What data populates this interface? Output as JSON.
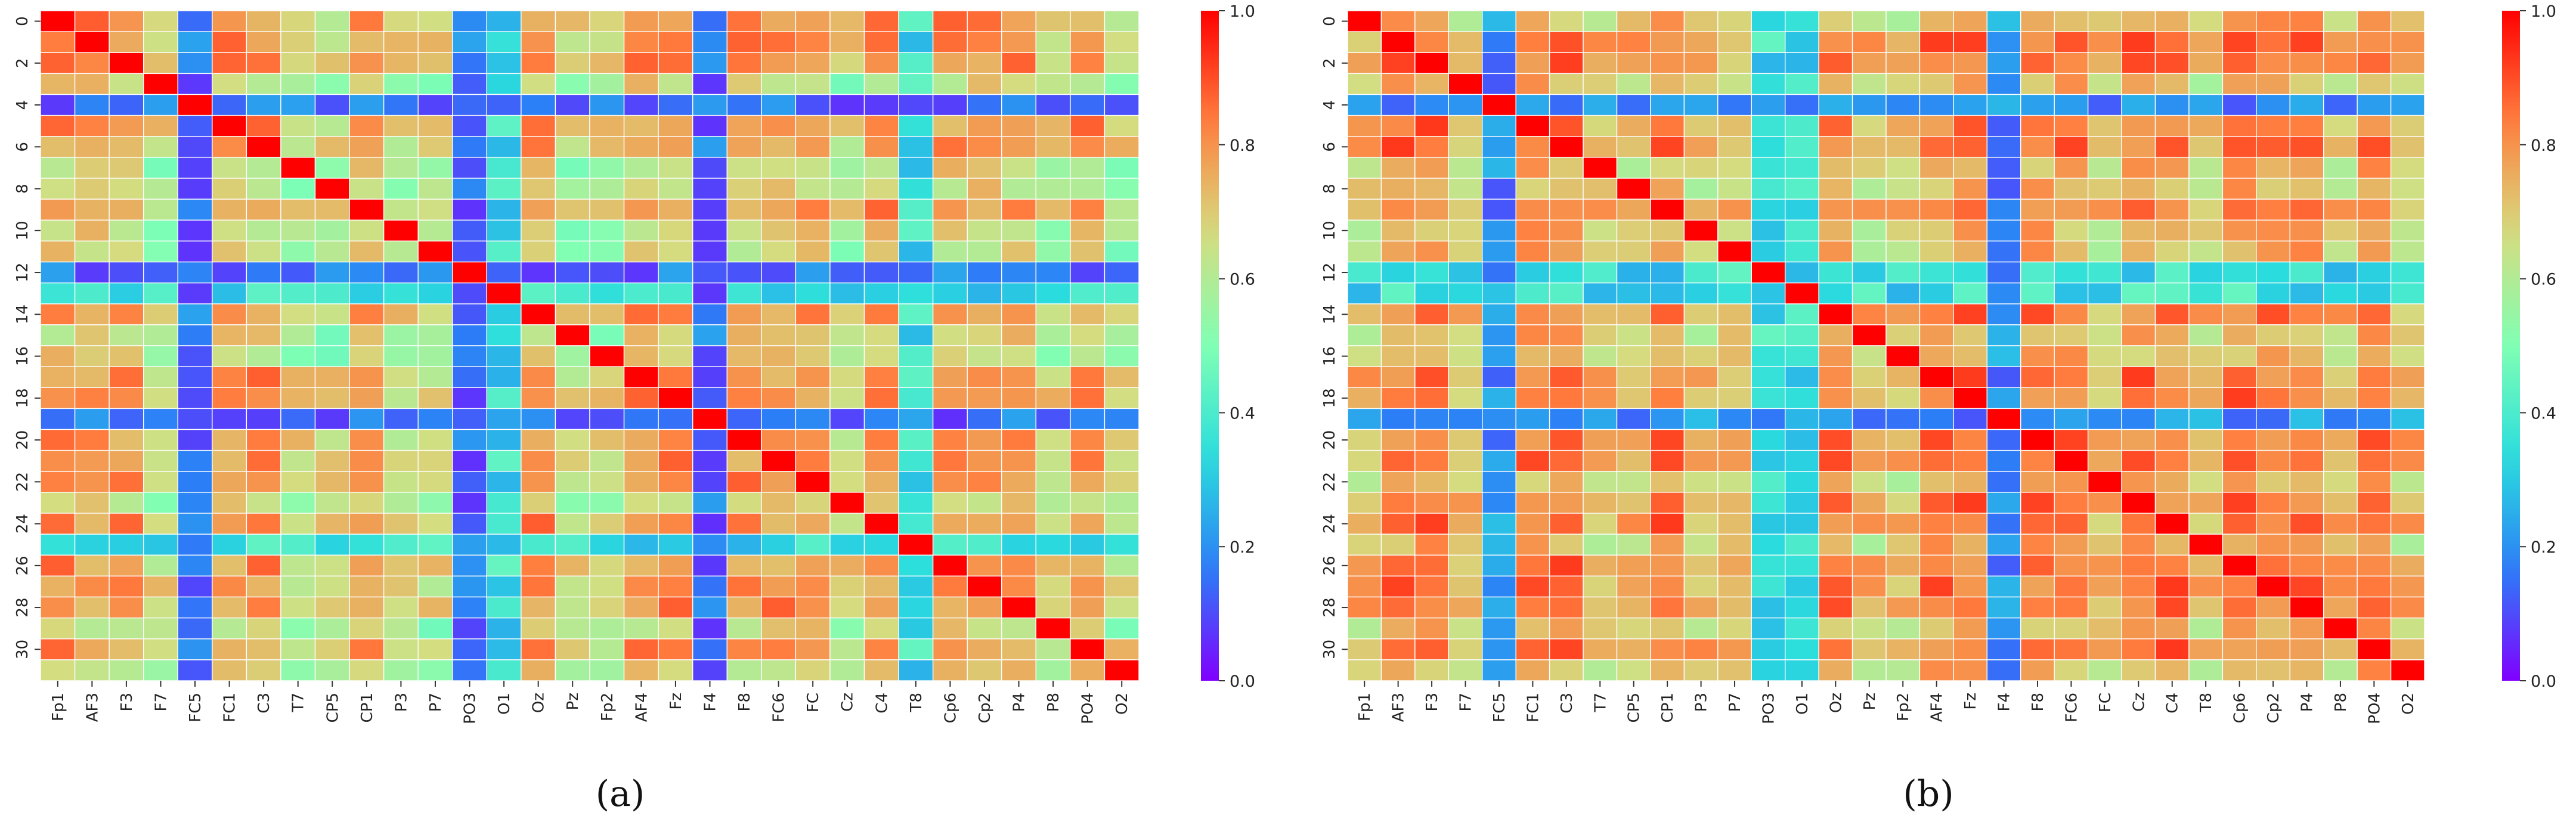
{
  "figure": {
    "description_labels": [
      "(a)",
      "(b)"
    ]
  },
  "colormap": {
    "name": "rainbow",
    "stops": [
      "#8000ff",
      "#2c7ef7",
      "#2adddd",
      "#80ffb4",
      "#d4dd80",
      "#ff8040",
      "#ff0000"
    ]
  },
  "chart_data": [
    {
      "type": "heatmap",
      "panel_label": "(a)",
      "title": "",
      "xlabel": "",
      "ylabel": "",
      "x_tick_labels": [
        "Fp1",
        "AF3",
        "F3",
        "F7",
        "FC5",
        "FC1",
        "C3",
        "T7",
        "CP5",
        "CP1",
        "P3",
        "P7",
        "PO3",
        "O1",
        "Oz",
        "Pz",
        "Fp2",
        "AF4",
        "Fz",
        "F4",
        "F8",
        "FC6",
        "FC",
        "Cz",
        "C4",
        "T8",
        "Cp6",
        "Cp2",
        "P4",
        "P8",
        "PO4",
        "O2"
      ],
      "y_tick_labels": [
        "0",
        "2",
        "4",
        "6",
        "8",
        "10",
        "12",
        "14",
        "16",
        "18",
        "20",
        "22",
        "24",
        "26",
        "28",
        "30"
      ],
      "n_rows": 32,
      "n_cols": 32,
      "value_range": [
        0.0,
        1.0
      ],
      "colorbar_ticks": [
        "0.0",
        "0.2",
        "0.4",
        "0.6",
        "0.8",
        "1.0"
      ],
      "grid": true,
      "diagonal_value": 1.0,
      "low_correlation_channels": {
        "indices": [
          4,
          12,
          19
        ],
        "labels": [
          "FC5",
          "PO3",
          "F4"
        ],
        "approx_value": 0.15
      },
      "medium_low_channels": {
        "indices": [
          13,
          25
        ],
        "labels": [
          "O1",
          "T8"
        ],
        "approx_value": 0.35
      },
      "high_correlation_channels": {
        "indices": [
          0,
          1,
          2,
          5,
          6,
          9,
          14,
          17,
          18,
          20,
          21,
          22,
          24,
          26,
          27,
          28,
          30
        ],
        "approx_value": 0.8
      },
      "background_value": 0.55
    },
    {
      "type": "heatmap",
      "panel_label": "(b)",
      "title": "",
      "xlabel": "",
      "ylabel": "",
      "x_tick_labels": [
        "Fp1",
        "AF3",
        "F3",
        "F7",
        "FC5",
        "FC1",
        "C3",
        "T7",
        "CP5",
        "CP1",
        "P3",
        "P7",
        "PO3",
        "O1",
        "Oz",
        "Pz",
        "Fp2",
        "AF4",
        "Fz",
        "F4",
        "F8",
        "FC6",
        "FC",
        "Cz",
        "C4",
        "T8",
        "Cp6",
        "Cp2",
        "P4",
        "P8",
        "PO4",
        "O2"
      ],
      "y_tick_labels": [
        "0",
        "2",
        "4",
        "6",
        "8",
        "10",
        "12",
        "14",
        "16",
        "18",
        "20",
        "22",
        "24",
        "26",
        "28",
        "30"
      ],
      "n_rows": 32,
      "n_cols": 32,
      "value_range": [
        0.0,
        1.0
      ],
      "colorbar_ticks": [
        "0.0",
        "0.2",
        "0.4",
        "0.6",
        "0.8",
        "1.0"
      ],
      "grid": true,
      "diagonal_value": 1.0,
      "low_correlation_channels": {
        "indices": [
          4,
          19
        ],
        "labels": [
          "FC5",
          "F4"
        ],
        "approx_value": 0.2
      },
      "medium_low_channels": {
        "indices": [
          12,
          13
        ],
        "labels": [
          "PO3",
          "O1"
        ],
        "approx_value": 0.35
      },
      "high_correlation_channels": {
        "indices": [
          1,
          2,
          5,
          6,
          9,
          14,
          17,
          18,
          20,
          21,
          23,
          24,
          26,
          27,
          28,
          30
        ],
        "approx_value": 0.85
      },
      "background_value": 0.65
    }
  ]
}
